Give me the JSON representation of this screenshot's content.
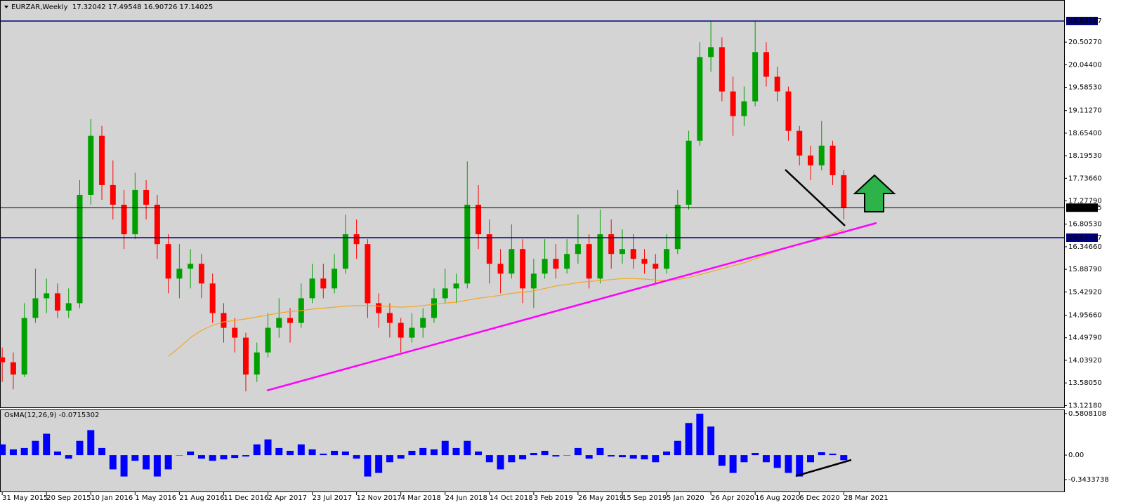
{
  "header": "EURZAR,Weekly  17.32042 17.49548 16.90726 17.14025",
  "chart_data": [
    {
      "type": "candlestick",
      "xlim": [
        -0.2,
        95.9
      ],
      "ylim": [
        13.07,
        21.33
      ],
      "bull_color": "#00a000",
      "bear_color": "#ff0000",
      "yticks": [
        {
          "value": 13.1218,
          "label": "13.12180"
        },
        {
          "value": 13.5805,
          "label": "13.58050"
        },
        {
          "value": 14.0392,
          "label": "14.03920"
        },
        {
          "value": 14.4979,
          "label": "14.49790"
        },
        {
          "value": 14.9566,
          "label": "14.95660"
        },
        {
          "value": 15.4292,
          "label": "15.42920"
        },
        {
          "value": 15.8879,
          "label": "15.88790"
        },
        {
          "value": 16.3466,
          "label": "16.34660"
        },
        {
          "value": 16.8053,
          "label": "16.80530"
        },
        {
          "value": 17.2779,
          "label": "17.27790"
        },
        {
          "value": 17.7366,
          "label": "17.73660"
        },
        {
          "value": 18.1953,
          "label": "18.19530"
        },
        {
          "value": 18.654,
          "label": "18.65400"
        },
        {
          "value": 19.1127,
          "label": "19.11270"
        },
        {
          "value": 19.5853,
          "label": "19.58530"
        },
        {
          "value": 20.044,
          "label": "20.04400"
        },
        {
          "value": 20.5027,
          "label": "20.50270"
        }
      ],
      "hlines": [
        {
          "value": 20.93197,
          "color": "#000080"
        },
        {
          "value": 17.14025,
          "color": "#000000"
        },
        {
          "value": 16.53057,
          "color": "#000080"
        }
      ],
      "ohlc": [
        [
          14.1,
          14.3,
          13.6,
          14.0
        ],
        [
          14.0,
          14.2,
          13.45,
          13.75
        ],
        [
          13.75,
          15.2,
          13.7,
          14.9
        ],
        [
          14.9,
          15.9,
          14.8,
          15.3
        ],
        [
          15.3,
          15.7,
          15.0,
          15.4
        ],
        [
          15.4,
          15.6,
          14.9,
          15.05
        ],
        [
          15.05,
          15.5,
          14.9,
          15.2
        ],
        [
          15.2,
          17.7,
          15.1,
          17.4
        ],
        [
          17.4,
          18.94,
          17.2,
          18.6
        ],
        [
          18.6,
          18.8,
          17.3,
          17.6
        ],
        [
          17.6,
          18.1,
          16.9,
          17.2
        ],
        [
          17.2,
          17.5,
          16.3,
          16.6
        ],
        [
          16.6,
          17.85,
          16.5,
          17.5
        ],
        [
          17.5,
          17.7,
          16.9,
          17.2
        ],
        [
          17.2,
          17.4,
          16.1,
          16.4
        ],
        [
          16.4,
          16.6,
          15.4,
          15.7
        ],
        [
          15.7,
          16.4,
          15.3,
          15.9
        ],
        [
          15.9,
          16.3,
          15.5,
          16.0
        ],
        [
          16.0,
          16.2,
          15.3,
          15.6
        ],
        [
          15.6,
          15.8,
          14.8,
          15.0
        ],
        [
          15.0,
          15.2,
          14.4,
          14.7
        ],
        [
          14.7,
          14.9,
          14.2,
          14.5
        ],
        [
          14.5,
          14.6,
          13.41,
          13.75
        ],
        [
          13.75,
          14.4,
          13.6,
          14.2
        ],
        [
          14.2,
          15.0,
          14.1,
          14.7
        ],
        [
          14.7,
          15.3,
          14.5,
          14.9
        ],
        [
          14.9,
          15.1,
          14.4,
          14.8
        ],
        [
          14.8,
          15.6,
          14.7,
          15.3
        ],
        [
          15.3,
          16.0,
          15.2,
          15.7
        ],
        [
          15.7,
          16.0,
          15.3,
          15.5
        ],
        [
          15.5,
          16.2,
          15.4,
          15.9
        ],
        [
          15.9,
          17.0,
          15.8,
          16.6
        ],
        [
          16.6,
          16.9,
          16.1,
          16.4
        ],
        [
          16.4,
          16.5,
          14.9,
          15.2
        ],
        [
          15.2,
          15.4,
          14.7,
          15.0
        ],
        [
          15.0,
          15.2,
          14.5,
          14.8
        ],
        [
          14.8,
          14.9,
          14.2,
          14.5
        ],
        [
          14.5,
          15.0,
          14.4,
          14.7
        ],
        [
          14.7,
          15.1,
          14.5,
          14.9
        ],
        [
          14.9,
          15.5,
          14.8,
          15.3
        ],
        [
          15.3,
          15.9,
          15.2,
          15.5
        ],
        [
          15.5,
          15.8,
          15.2,
          15.6
        ],
        [
          15.6,
          18.08,
          15.5,
          17.2
        ],
        [
          17.2,
          17.6,
          16.3,
          16.6
        ],
        [
          16.6,
          16.9,
          15.6,
          16.0
        ],
        [
          16.0,
          16.3,
          15.4,
          15.8
        ],
        [
          15.8,
          16.8,
          15.7,
          16.3
        ],
        [
          16.3,
          16.5,
          15.2,
          15.5
        ],
        [
          15.5,
          16.1,
          15.1,
          15.8
        ],
        [
          15.8,
          16.5,
          15.7,
          16.1
        ],
        [
          16.1,
          16.4,
          15.7,
          15.9
        ],
        [
          15.9,
          16.5,
          15.8,
          16.2
        ],
        [
          16.2,
          17.0,
          16.0,
          16.4
        ],
        [
          16.4,
          16.6,
          15.5,
          15.7
        ],
        [
          15.7,
          17.1,
          15.6,
          16.6
        ],
        [
          16.6,
          16.9,
          15.9,
          16.2
        ],
        [
          16.2,
          16.7,
          16.0,
          16.3
        ],
        [
          16.3,
          16.6,
          15.9,
          16.1
        ],
        [
          16.1,
          16.3,
          15.8,
          16.0
        ],
        [
          16.0,
          16.2,
          15.6,
          15.9
        ],
        [
          15.9,
          16.6,
          15.8,
          16.3
        ],
        [
          16.3,
          17.5,
          16.2,
          17.2
        ],
        [
          17.2,
          18.7,
          17.1,
          18.5
        ],
        [
          18.5,
          20.5,
          18.4,
          20.2
        ],
        [
          20.2,
          20.93,
          19.9,
          20.4
        ],
        [
          20.4,
          20.6,
          19.3,
          19.5
        ],
        [
          19.5,
          19.8,
          18.6,
          19.0
        ],
        [
          19.0,
          19.6,
          18.8,
          19.3
        ],
        [
          19.3,
          20.93,
          19.2,
          20.3
        ],
        [
          20.3,
          20.5,
          19.6,
          19.8
        ],
        [
          19.8,
          20.0,
          19.3,
          19.5
        ],
        [
          19.5,
          19.6,
          18.5,
          18.7
        ],
        [
          18.7,
          18.8,
          18.0,
          18.2
        ],
        [
          18.2,
          18.4,
          17.7,
          18.0
        ],
        [
          18.0,
          18.9,
          17.9,
          18.4
        ],
        [
          18.4,
          18.5,
          17.6,
          17.8
        ],
        [
          17.8,
          17.9,
          16.9,
          17.14
        ]
      ],
      "series": [
        {
          "color": "#f5a623",
          "values": [
            null,
            null,
            null,
            null,
            null,
            null,
            null,
            null,
            null,
            null,
            null,
            null,
            null,
            null,
            null,
            14.12,
            14.3,
            14.5,
            14.65,
            14.75,
            14.82,
            14.85,
            14.88,
            14.92,
            14.96,
            15.0,
            15.03,
            15.05,
            15.08,
            15.1,
            15.12,
            15.14,
            15.15,
            15.15,
            15.14,
            15.13,
            15.12,
            15.13,
            15.15,
            15.18,
            15.2,
            15.22,
            15.26,
            15.3,
            15.33,
            15.36,
            15.4,
            15.42,
            15.45,
            15.5,
            15.55,
            15.58,
            15.62,
            15.64,
            15.66,
            15.68,
            15.7,
            15.7,
            15.69,
            15.67,
            15.66,
            15.68,
            15.72,
            15.78,
            15.84,
            15.9,
            15.96,
            16.02,
            16.1,
            16.18,
            16.26,
            16.33,
            16.4,
            16.47,
            16.55,
            16.62,
            16.7
          ]
        }
      ]
    },
    {
      "type": "bar",
      "title": "OsMA(12,26,9) -0.0715302",
      "color": "#0000ff",
      "xlim": [
        -0.2,
        95.9
      ],
      "ylim": [
        -0.52,
        0.63
      ],
      "yticks": [
        0.5808108,
        {
          "value": 0,
          "label": "0.00"
        },
        -0.3433738
      ],
      "xticks": [
        {
          "value": 0,
          "label": "31 May 2015"
        },
        {
          "value": 4,
          "label": "20 Sep 2015"
        },
        {
          "value": 8,
          "label": "10 Jan 2016"
        },
        {
          "value": 12,
          "label": "1 May 2016"
        },
        {
          "value": 16,
          "label": "21 Aug 2016"
        },
        {
          "value": 20,
          "label": "11 Dec 2016"
        },
        {
          "value": 24,
          "label": "2 Apr 2017"
        },
        {
          "value": 28,
          "label": "23 Jul 2017"
        },
        {
          "value": 32,
          "label": "12 Nov 2017"
        },
        {
          "value": 36,
          "label": "4 Mar 2018"
        },
        {
          "value": 40,
          "label": "24 Jun 2018"
        },
        {
          "value": 44,
          "label": "14 Oct 2018"
        },
        {
          "value": 48,
          "label": "3 Feb 2019"
        },
        {
          "value": 52,
          "label": "26 May 2019"
        },
        {
          "value": 56,
          "label": "15 Sep 2019"
        },
        {
          "value": 60,
          "label": "5 Jan 2020"
        },
        {
          "value": 64,
          "label": "26 Apr 2020"
        },
        {
          "value": 68,
          "label": "16 Aug 2020"
        },
        {
          "value": 72,
          "label": "6 Dec 2020"
        },
        {
          "value": 76,
          "label": "28 Mar 2021"
        }
      ],
      "values": [
        0.15,
        0.08,
        0.1,
        0.2,
        0.3,
        0.05,
        -0.05,
        0.2,
        0.35,
        0.1,
        -0.2,
        -0.3,
        -0.08,
        -0.2,
        -0.3,
        -0.2,
        0.0,
        0.05,
        -0.05,
        -0.08,
        -0.06,
        -0.04,
        -0.02,
        0.15,
        0.22,
        0.1,
        0.06,
        0.15,
        0.08,
        0.02,
        0.06,
        0.05,
        -0.05,
        -0.3,
        -0.25,
        -0.1,
        -0.05,
        0.06,
        0.1,
        0.08,
        0.2,
        0.1,
        0.2,
        0.05,
        -0.1,
        -0.2,
        -0.1,
        -0.06,
        0.03,
        0.06,
        -0.02,
        0.0,
        0.1,
        -0.05,
        0.1,
        -0.02,
        -0.03,
        -0.05,
        -0.06,
        -0.1,
        0.05,
        0.2,
        0.45,
        0.58,
        0.4,
        -0.15,
        -0.25,
        -0.1,
        0.03,
        -0.1,
        -0.18,
        -0.25,
        -0.3,
        -0.1,
        0.04,
        0.02,
        -0.0715302
      ]
    }
  ]
}
